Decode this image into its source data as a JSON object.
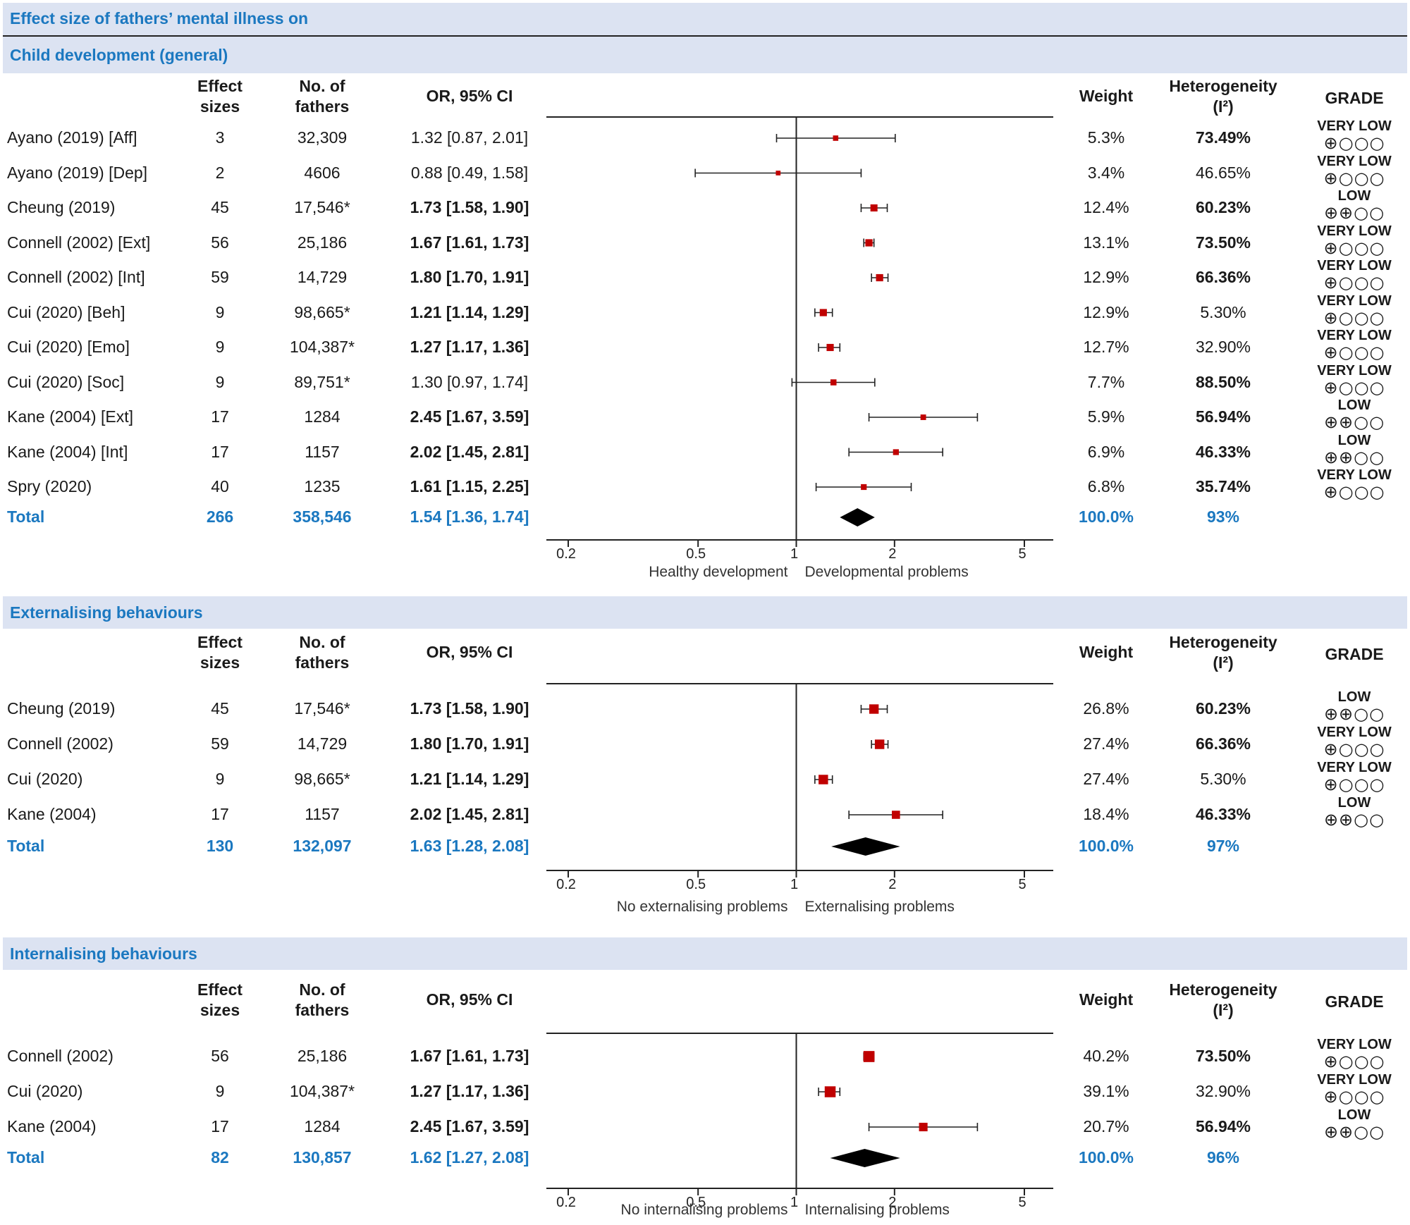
{
  "title": "Effect size of fathers’ mental illness on",
  "headers": {
    "effect": [
      "Effect",
      "sizes"
    ],
    "fathers": [
      "No. of",
      "fathers"
    ],
    "or": "OR, 95% CI",
    "weight": "Weight",
    "het": [
      "Heterogeneity",
      "(I²)"
    ],
    "grade": "GRADE"
  },
  "colors": {
    "band": "#dce3f2",
    "accent": "#1b78c0",
    "marker": "#c00000"
  },
  "chart_data": [
    {
      "type": "forest",
      "title": "Child development (general)",
      "x_scale": "log",
      "xlim": [
        0.15,
        7
      ],
      "x_ticks": [
        0.2,
        0.5,
        1,
        2,
        5
      ],
      "x_tick_labels": [
        "0.2",
        "0.5",
        "1",
        "2",
        "5"
      ],
      "reference_line": 1,
      "left_label": "Healthy development",
      "right_label": "Developmental problems",
      "studies": [
        {
          "name": "Ayano (2019) [Aff]",
          "k": "3",
          "n": "32,309",
          "or": 1.32,
          "lo": 0.87,
          "hi": 2.01,
          "ci": "1.32 [0.87, 2.01]",
          "bold": false,
          "weight": "5.3%",
          "i2": "73.49%",
          "i2_bold": true,
          "grade": "VERY LOW",
          "grade_sym": "⊕○○○"
        },
        {
          "name": "Ayano (2019) [Dep]",
          "k": "2",
          "n": "4606",
          "or": 0.88,
          "lo": 0.49,
          "hi": 1.58,
          "ci": "0.88 [0.49, 1.58]",
          "bold": false,
          "weight": "3.4%",
          "i2": "46.65%",
          "i2_bold": false,
          "grade": "VERY LOW",
          "grade_sym": "⊕○○○"
        },
        {
          "name": "Cheung (2019)",
          "k": "45",
          "n": "17,546*",
          "or": 1.73,
          "lo": 1.58,
          "hi": 1.9,
          "ci": "1.73 [1.58, 1.90]",
          "bold": true,
          "weight": "12.4%",
          "i2": "60.23%",
          "i2_bold": true,
          "grade": "LOW",
          "grade_sym": "⊕⊕○○"
        },
        {
          "name": "Connell (2002) [Ext]",
          "k": "56",
          "n": "25,186",
          "or": 1.67,
          "lo": 1.61,
          "hi": 1.73,
          "ci": "1.67 [1.61, 1.73]",
          "bold": true,
          "weight": "13.1%",
          "i2": "73.50%",
          "i2_bold": true,
          "grade": "VERY LOW",
          "grade_sym": "⊕○○○"
        },
        {
          "name": "Connell (2002) [Int]",
          "k": "59",
          "n": "14,729",
          "or": 1.8,
          "lo": 1.7,
          "hi": 1.91,
          "ci": "1.80 [1.70, 1.91]",
          "bold": true,
          "weight": "12.9%",
          "i2": "66.36%",
          "i2_bold": true,
          "grade": "VERY LOW",
          "grade_sym": "⊕○○○"
        },
        {
          "name": "Cui (2020) [Beh]",
          "k": "9",
          "n": "98,665*",
          "or": 1.21,
          "lo": 1.14,
          "hi": 1.29,
          "ci": "1.21 [1.14, 1.29]",
          "bold": true,
          "weight": "12.9%",
          "i2": "5.30%",
          "i2_bold": false,
          "grade": "VERY LOW",
          "grade_sym": "⊕○○○"
        },
        {
          "name": "Cui (2020) [Emo]",
          "k": "9",
          "n": "104,387*",
          "or": 1.27,
          "lo": 1.17,
          "hi": 1.36,
          "ci": "1.27 [1.17, 1.36]",
          "bold": true,
          "weight": "12.7%",
          "i2": "32.90%",
          "i2_bold": false,
          "grade": "VERY LOW",
          "grade_sym": "⊕○○○"
        },
        {
          "name": "Cui (2020) [Soc]",
          "k": "9",
          "n": "89,751*",
          "or": 1.3,
          "lo": 0.97,
          "hi": 1.74,
          "ci": "1.30 [0.97, 1.74]",
          "bold": false,
          "weight": "7.7%",
          "i2": "88.50%",
          "i2_bold": true,
          "grade": "VERY LOW",
          "grade_sym": "⊕○○○"
        },
        {
          "name": "Kane (2004) [Ext]",
          "k": "17",
          "n": "1284",
          "or": 2.45,
          "lo": 1.67,
          "hi": 3.59,
          "ci": "2.45 [1.67, 3.59]",
          "bold": true,
          "weight": "5.9%",
          "i2": "56.94%",
          "i2_bold": true,
          "grade": "LOW",
          "grade_sym": "⊕⊕○○"
        },
        {
          "name": "Kane (2004) [Int]",
          "k": "17",
          "n": "1157",
          "or": 2.02,
          "lo": 1.45,
          "hi": 2.81,
          "ci": "2.02 [1.45, 2.81]",
          "bold": true,
          "weight": "6.9%",
          "i2": "46.33%",
          "i2_bold": true,
          "grade": "LOW",
          "grade_sym": "⊕⊕○○"
        },
        {
          "name": "Spry (2020)",
          "k": "40",
          "n": "1235",
          "or": 1.61,
          "lo": 1.15,
          "hi": 2.25,
          "ci": "1.61 [1.15, 2.25]",
          "bold": true,
          "weight": "6.8%",
          "i2": "35.74%",
          "i2_bold": true,
          "grade": "VERY LOW",
          "grade_sym": "⊕○○○"
        }
      ],
      "total": {
        "name": "Total",
        "k": "266",
        "n": "358,546",
        "or": 1.54,
        "lo": 1.36,
        "hi": 1.74,
        "ci": "1.54 [1.36, 1.74]",
        "weight": "100.0%",
        "i2": "93%"
      }
    },
    {
      "type": "forest",
      "title": "Externalising behaviours",
      "x_scale": "log",
      "xlim": [
        0.15,
        7
      ],
      "x_ticks": [
        0.2,
        0.5,
        1,
        2,
        5
      ],
      "x_tick_labels": [
        "0.2",
        "0.5",
        "1",
        "2",
        "5"
      ],
      "reference_line": 1,
      "left_label": "No externalising problems",
      "right_label": "Externalising problems",
      "studies": [
        {
          "name": "Cheung (2019)",
          "k": "45",
          "n": "17,546*",
          "or": 1.73,
          "lo": 1.58,
          "hi": 1.9,
          "ci": "1.73 [1.58, 1.90]",
          "bold": true,
          "weight": "26.8%",
          "i2": "60.23%",
          "i2_bold": true,
          "grade": "LOW",
          "grade_sym": "⊕⊕○○"
        },
        {
          "name": "Connell (2002)",
          "k": "59",
          "n": "14,729",
          "or": 1.8,
          "lo": 1.7,
          "hi": 1.91,
          "ci": "1.80 [1.70, 1.91]",
          "bold": true,
          "weight": "27.4%",
          "i2": "66.36%",
          "i2_bold": true,
          "grade": "VERY LOW",
          "grade_sym": "⊕○○○"
        },
        {
          "name": "Cui (2020)",
          "k": "9",
          "n": "98,665*",
          "or": 1.21,
          "lo": 1.14,
          "hi": 1.29,
          "ci": "1.21 [1.14, 1.29]",
          "bold": true,
          "weight": "27.4%",
          "i2": "5.30%",
          "i2_bold": false,
          "grade": "VERY LOW",
          "grade_sym": "⊕○○○"
        },
        {
          "name": "Kane (2004)",
          "k": "17",
          "n": "1157",
          "or": 2.02,
          "lo": 1.45,
          "hi": 2.81,
          "ci": "2.02 [1.45, 2.81]",
          "bold": true,
          "weight": "18.4%",
          "i2": "46.33%",
          "i2_bold": true,
          "grade": "LOW",
          "grade_sym": "⊕⊕○○"
        }
      ],
      "total": {
        "name": "Total",
        "k": "130",
        "n": "132,097",
        "or": 1.63,
        "lo": 1.28,
        "hi": 2.08,
        "ci": "1.63 [1.28, 2.08]",
        "weight": "100.0%",
        "i2": "97%"
      }
    },
    {
      "type": "forest",
      "title": "Internalising behaviours",
      "x_scale": "log",
      "xlim": [
        0.15,
        7
      ],
      "x_ticks": [
        0.2,
        0.5,
        1,
        2,
        5
      ],
      "x_tick_labels": [
        "0.2",
        "0.5",
        "1",
        "2",
        "5"
      ],
      "reference_line": 1,
      "left_label": "No internalising problems",
      "right_label": "Internalising problems",
      "studies": [
        {
          "name": "Connell (2002)",
          "k": "56",
          "n": "25,186",
          "or": 1.67,
          "lo": 1.61,
          "hi": 1.73,
          "ci": "1.67 [1.61, 1.73]",
          "bold": true,
          "weight": "40.2%",
          "i2": "73.50%",
          "i2_bold": true,
          "grade": "VERY LOW",
          "grade_sym": "⊕○○○"
        },
        {
          "name": "Cui (2020)",
          "k": "9",
          "n": "104,387*",
          "or": 1.27,
          "lo": 1.17,
          "hi": 1.36,
          "ci": "1.27 [1.17, 1.36]",
          "bold": true,
          "weight": "39.1%",
          "i2": "32.90%",
          "i2_bold": false,
          "grade": "VERY LOW",
          "grade_sym": "⊕○○○"
        },
        {
          "name": "Kane (2004)",
          "k": "17",
          "n": "1284",
          "or": 2.45,
          "lo": 1.67,
          "hi": 3.59,
          "ci": "2.45 [1.67, 3.59]",
          "bold": true,
          "weight": "20.7%",
          "i2": "56.94%",
          "i2_bold": true,
          "grade": "LOW",
          "grade_sym": "⊕⊕○○"
        }
      ],
      "total": {
        "name": "Total",
        "k": "82",
        "n": "130,857",
        "or": 1.62,
        "lo": 1.27,
        "hi": 2.08,
        "ci": "1.62 [1.27, 2.08]",
        "weight": "100.0%",
        "i2": "96%"
      }
    }
  ]
}
